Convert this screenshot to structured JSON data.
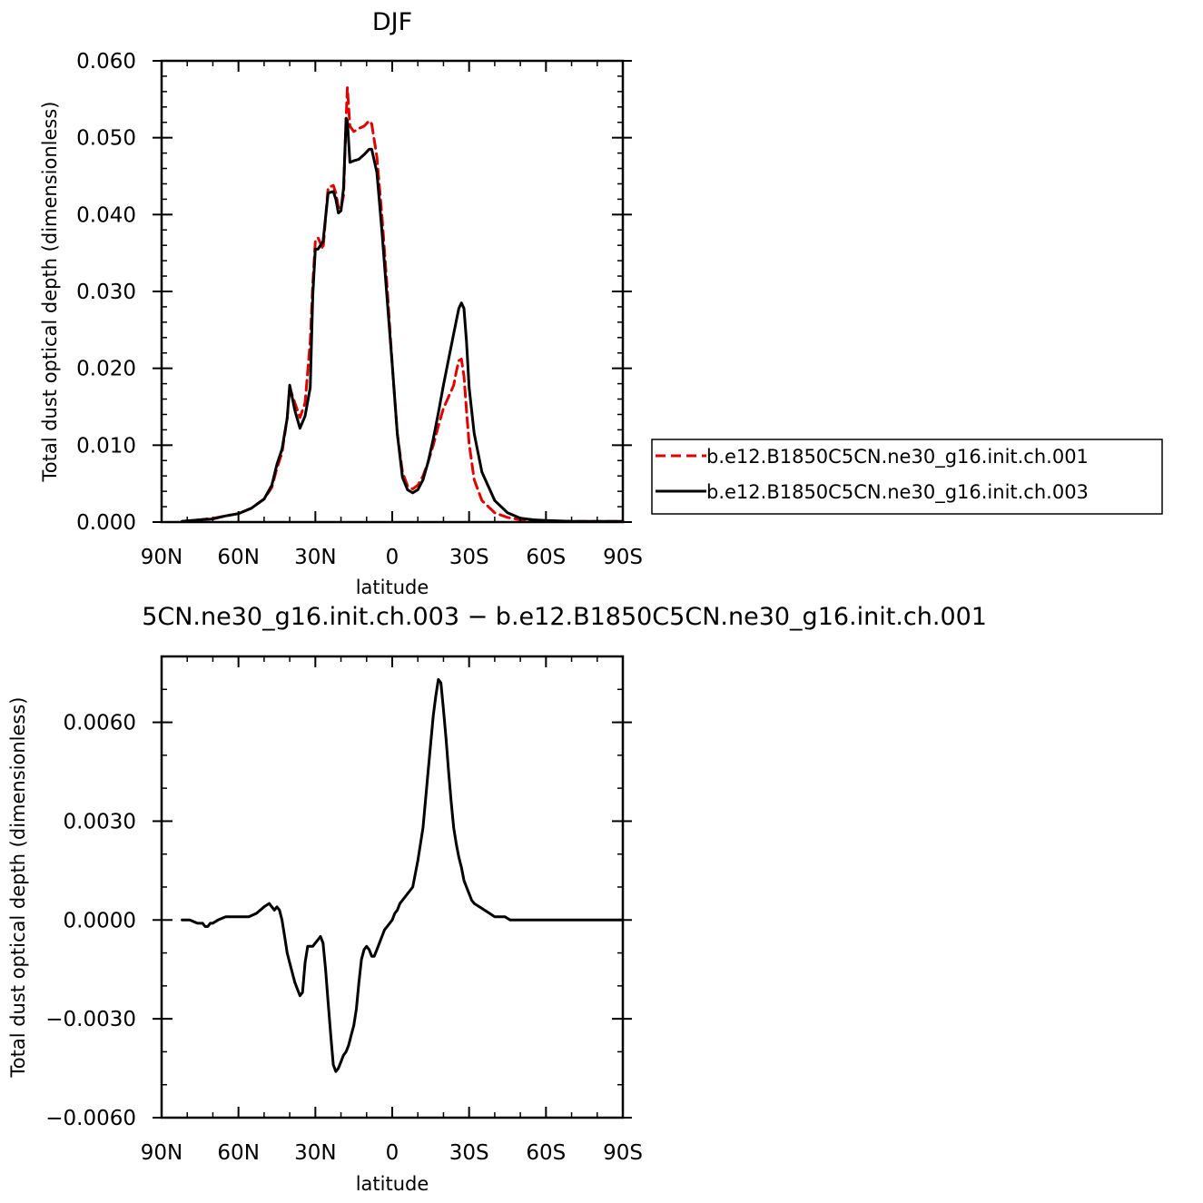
{
  "chart_data": [
    {
      "type": "line",
      "title": "DJF",
      "xlabel": "latitude",
      "ylabel": "Total dust optical depth (dimensionless)",
      "xlim": [
        90,
        -90
      ],
      "ylim": [
        0.0,
        0.06
      ],
      "x_ticks": [
        90,
        60,
        30,
        0,
        -30,
        -60,
        -90
      ],
      "x_tick_labels": [
        "90N",
        "60N",
        "30N",
        "0",
        "30S",
        "60S",
        "90S"
      ],
      "y_ticks": [
        0.0,
        0.01,
        0.02,
        0.03,
        0.04,
        0.05,
        0.06
      ],
      "y_tick_labels": [
        "0.000",
        "0.010",
        "0.020",
        "0.030",
        "0.040",
        "0.050",
        "0.060"
      ],
      "legend_position": "right",
      "series": [
        {
          "name": "b.e12.B1850C5CN.ne30_g16.init.ch.001",
          "color": "#e00000",
          "dash": "dashed",
          "x": [
            82,
            75,
            70,
            65,
            60,
            55,
            50,
            47,
            45,
            43,
            41,
            40,
            38,
            36,
            34,
            32,
            31,
            30,
            29,
            27,
            25,
            23,
            22,
            21,
            20,
            19,
            18,
            17.5,
            16.5,
            15,
            13,
            11,
            9,
            8,
            6,
            4,
            2,
            0,
            -2,
            -4,
            -6,
            -8,
            -10,
            -12,
            -14,
            -16,
            -18,
            -20,
            -22,
            -24,
            -25,
            -26,
            -27,
            -28,
            -29,
            -30,
            -32,
            -35,
            -40,
            -45,
            -50,
            -55,
            -60,
            -70,
            -80,
            -90
          ],
          "y": [
            0.0001,
            0.0003,
            0.0005,
            0.0008,
            0.0011,
            0.0018,
            0.003,
            0.0045,
            0.007,
            0.009,
            0.0135,
            0.0175,
            0.0155,
            0.0136,
            0.0155,
            0.0235,
            0.031,
            0.0365,
            0.037,
            0.0355,
            0.0435,
            0.0438,
            0.0428,
            0.041,
            0.0408,
            0.0425,
            0.0525,
            0.0565,
            0.0515,
            0.0508,
            0.0512,
            0.0515,
            0.0522,
            0.0518,
            0.0475,
            0.0398,
            0.0305,
            0.0205,
            0.0115,
            0.0065,
            0.0047,
            0.0043,
            0.0048,
            0.006,
            0.0078,
            0.01,
            0.0125,
            0.0148,
            0.0163,
            0.0178,
            0.0196,
            0.021,
            0.0212,
            0.019,
            0.0145,
            0.0102,
            0.0055,
            0.0028,
            0.0012,
            0.0006,
            0.0003,
            0.0002,
            0.0001,
            0.0001,
            0.0001,
            0.0001
          ]
        },
        {
          "name": "b.e12.B1850C5CN.ne30_g16.init.ch.003",
          "color": "#000000",
          "dash": "solid",
          "x": [
            82,
            75,
            70,
            65,
            60,
            55,
            50,
            47,
            45,
            43,
            41,
            40,
            38,
            36,
            34,
            32,
            31,
            30,
            29,
            27,
            25,
            23,
            22,
            21,
            20,
            19,
            18,
            17.5,
            16.5,
            15,
            13,
            11,
            9,
            8,
            6,
            4,
            2,
            0,
            -2,
            -4,
            -6,
            -8,
            -10,
            -12,
            -14,
            -16,
            -18,
            -20,
            -22,
            -24,
            -25,
            -26,
            -27,
            -28,
            -29,
            -30,
            -32,
            -35,
            -40,
            -45,
            -50,
            -55,
            -60,
            -70,
            -80,
            -90
          ],
          "y": [
            0.0001,
            0.0003,
            0.0004,
            0.0008,
            0.0011,
            0.0018,
            0.003,
            0.0048,
            0.0075,
            0.0095,
            0.0135,
            0.0178,
            0.0145,
            0.0122,
            0.0138,
            0.0175,
            0.0295,
            0.0355,
            0.0355,
            0.0365,
            0.0428,
            0.043,
            0.042,
            0.0402,
            0.0405,
            0.0435,
            0.0525,
            0.0522,
            0.0468,
            0.047,
            0.0472,
            0.0478,
            0.0485,
            0.0485,
            0.0455,
            0.0378,
            0.029,
            0.0205,
            0.0115,
            0.0058,
            0.0042,
            0.0038,
            0.0042,
            0.0055,
            0.0078,
            0.0108,
            0.0142,
            0.0178,
            0.0212,
            0.0245,
            0.0262,
            0.0278,
            0.0285,
            0.0278,
            0.0235,
            0.0175,
            0.0115,
            0.0065,
            0.0028,
            0.0012,
            0.0005,
            0.0003,
            0.0002,
            0.0001,
            0.0001,
            0.0001
          ]
        }
      ]
    },
    {
      "type": "line",
      "title": "5CN.ne30_g16.init.ch.003 − b.e12.B1850C5CN.ne30_g16.init.ch.001",
      "xlabel": "latitude",
      "ylabel": "Total dust optical depth (dimensionless)",
      "xlim": [
        90,
        -90
      ],
      "ylim": [
        -0.006,
        0.008
      ],
      "x_ticks": [
        90,
        60,
        30,
        0,
        -30,
        -60,
        -90
      ],
      "x_tick_labels": [
        "90N",
        "60N",
        "30N",
        "0",
        "30S",
        "60S",
        "90S"
      ],
      "y_ticks": [
        -0.006,
        -0.003,
        0.0,
        0.003,
        0.006
      ],
      "y_tick_labels": [
        "−0.0060",
        "−0.0030",
        "0.0000",
        "0.0030",
        "0.0060"
      ],
      "series": [
        {
          "color": "#000000",
          "dash": "solid",
          "x": [
            82,
            79,
            76,
            74,
            73,
            72,
            71,
            70,
            68,
            65,
            62,
            59,
            56,
            53,
            50,
            48,
            47,
            46,
            45,
            44,
            43,
            42,
            41,
            40,
            39,
            38,
            37,
            36,
            35,
            34,
            33,
            32,
            31,
            30,
            29,
            28,
            27,
            26,
            25,
            24,
            23,
            22,
            21,
            20,
            19,
            18,
            17,
            16,
            15,
            14,
            13,
            12,
            11,
            10,
            9,
            8,
            7,
            6,
            5,
            4,
            3,
            2,
            1,
            0,
            -1,
            -2,
            -3,
            -4,
            -6,
            -8,
            -10,
            -12,
            -14,
            -16,
            -17,
            -18,
            -19,
            -20,
            -21,
            -22,
            -23,
            -24,
            -25,
            -26,
            -27,
            -28,
            -29,
            -30,
            -31,
            -32,
            -34,
            -36,
            -38,
            -40,
            -42,
            -44,
            -46,
            -50,
            -55,
            -60,
            -70,
            -80,
            -90
          ],
          "y": [
            0.0,
            0.0,
            -0.0001,
            -0.0001,
            -0.0002,
            -0.0002,
            -0.0001,
            -0.0001,
            0.0,
            0.0001,
            0.0001,
            0.0001,
            0.0001,
            0.0002,
            0.0004,
            0.0005,
            0.0004,
            0.0003,
            0.0004,
            0.0003,
            0.0,
            -0.0005,
            -0.001,
            -0.0013,
            -0.0016,
            -0.0019,
            -0.0021,
            -0.0023,
            -0.0022,
            -0.0013,
            -0.0008,
            -0.0008,
            -0.0008,
            -0.0007,
            -0.0006,
            -0.0005,
            -0.0007,
            -0.0015,
            -0.0025,
            -0.0035,
            -0.0044,
            -0.0046,
            -0.0045,
            -0.0043,
            -0.0041,
            -0.004,
            -0.0038,
            -0.0035,
            -0.0032,
            -0.0027,
            -0.0019,
            -0.0012,
            -0.0009,
            -0.0008,
            -0.0009,
            -0.0011,
            -0.0011,
            -0.0009,
            -0.0007,
            -0.0005,
            -0.0003,
            -0.0002,
            -0.0001,
            0.0,
            0.0002,
            0.0003,
            0.0005,
            0.0006,
            0.0008,
            0.001,
            0.0018,
            0.0028,
            0.0045,
            0.0062,
            0.0068,
            0.0073,
            0.0072,
            0.0064,
            0.0055,
            0.0045,
            0.0036,
            0.0028,
            0.0023,
            0.0019,
            0.0016,
            0.0012,
            0.001,
            0.0008,
            0.0006,
            0.0005,
            0.0004,
            0.0003,
            0.0002,
            0.0001,
            0.0001,
            0.0001,
            0.0,
            0.0,
            0.0,
            0.0,
            0.0,
            0.0,
            0.0
          ]
        }
      ]
    }
  ]
}
